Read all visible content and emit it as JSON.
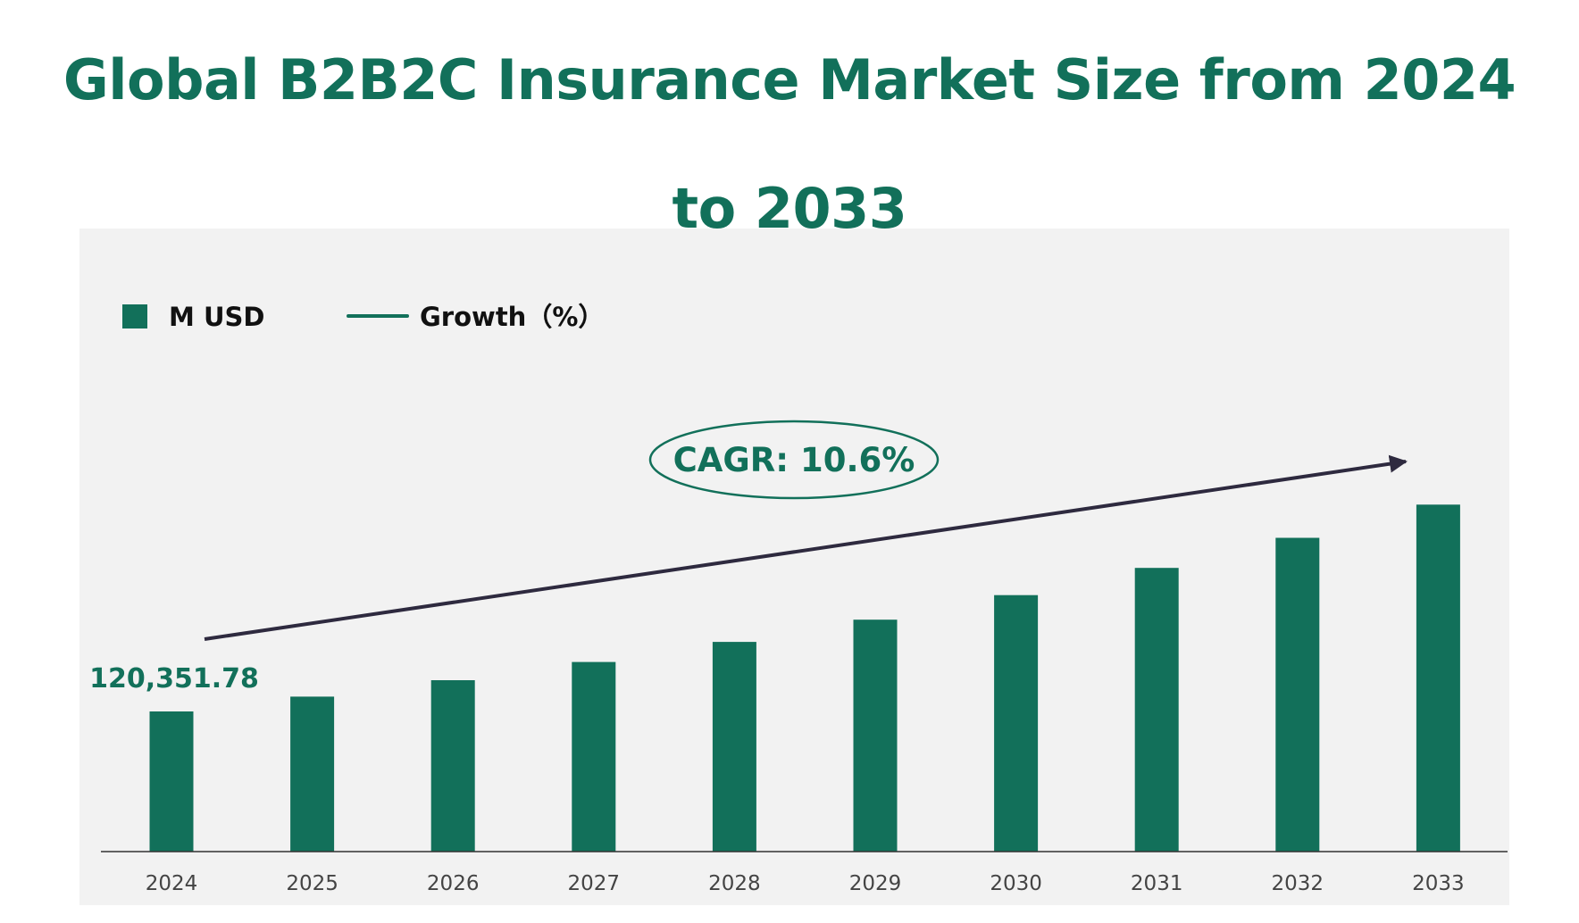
{
  "chart_data": {
    "type": "bar",
    "title": "Global B2B2C Insurance Market Size from 2024 to 2033",
    "categories": [
      "2024",
      "2025",
      "2026",
      "2027",
      "2028",
      "2029",
      "2030",
      "2031",
      "2032",
      "2033"
    ],
    "series": [
      {
        "name": "M USD",
        "values": [
          120351.78,
          133109,
          147218,
          162823,
          180082,
          199171,
          220283,
          243633,
          269458,
          298022
        ]
      }
    ],
    "data_labels": [
      {
        "category": "2024",
        "text": "120,351.78"
      }
    ],
    "legend": {
      "position": "top-left",
      "items": [
        {
          "label": "M USD",
          "marker": "square"
        },
        {
          "label": "Growth（%）",
          "marker": "line"
        }
      ]
    },
    "annotation": {
      "text": "CAGR: 10.6%",
      "shape": "ellipse",
      "arrow": "trend-up"
    },
    "xlabel": "",
    "ylabel": "",
    "ylim": [
      0,
      330000
    ],
    "grid": false,
    "colors": {
      "bar": "#12705A",
      "title": "#12705A",
      "arrow": "#2E2A3F",
      "background": "#F2F2F2"
    }
  }
}
